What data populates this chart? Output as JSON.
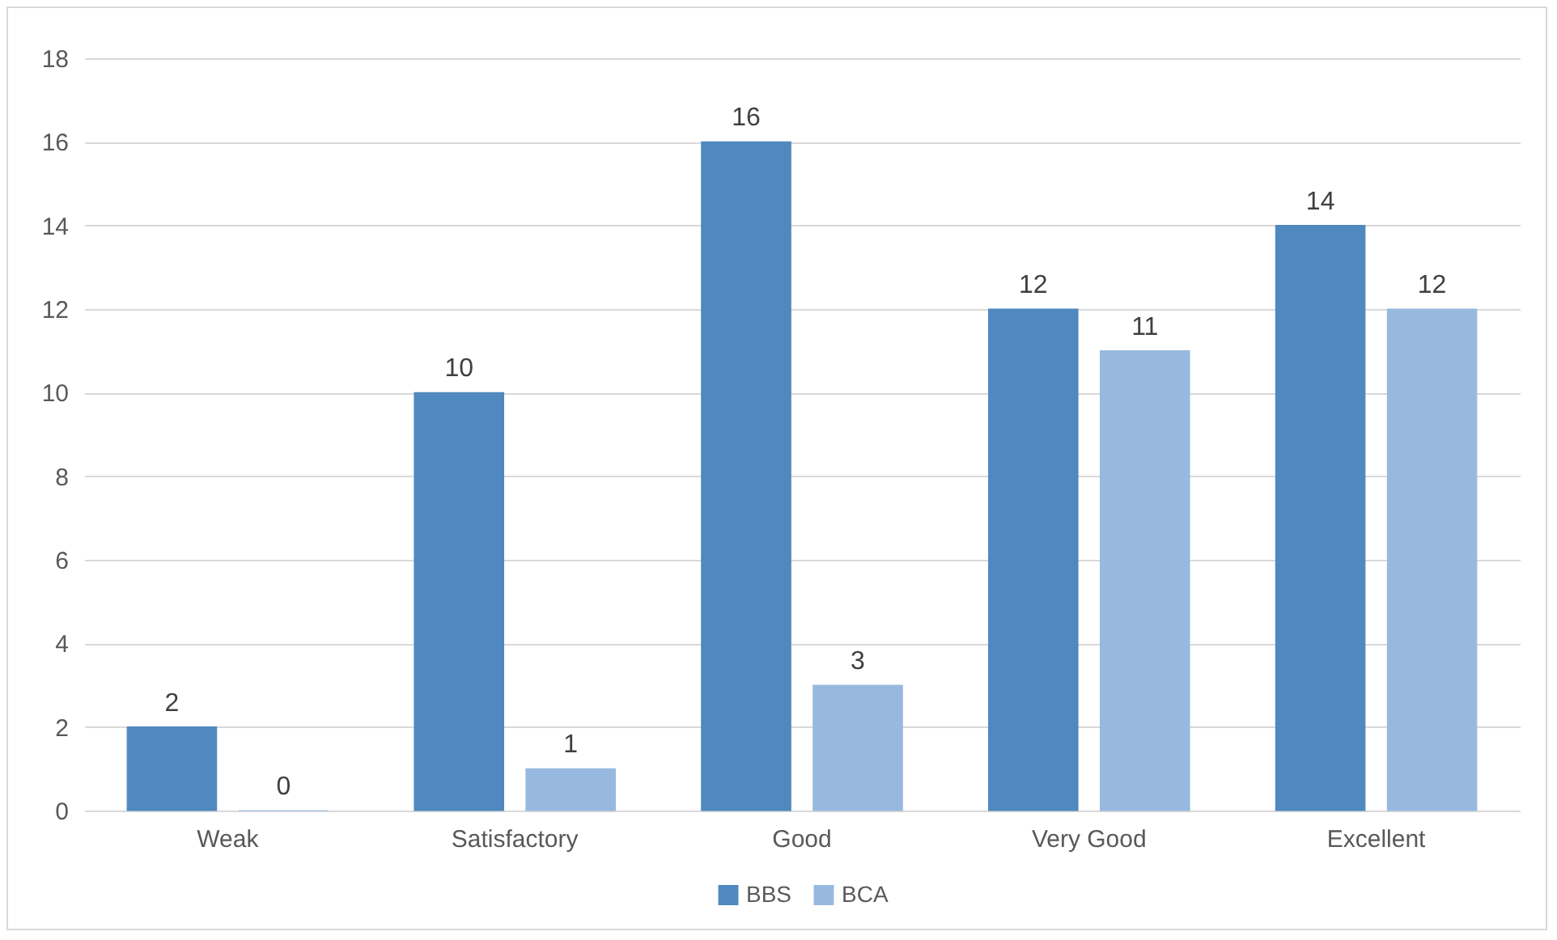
{
  "chart_data": {
    "type": "bar",
    "categories": [
      "Weak",
      "Satisfactory",
      "Good",
      "Very Good",
      "Excellent"
    ],
    "series": [
      {
        "name": "BBS",
        "color": "#4f89bf",
        "values": [
          2,
          10,
          16,
          12,
          14
        ]
      },
      {
        "name": "BCA",
        "color": "#98b9df",
        "values": [
          0,
          1,
          3,
          11,
          12
        ]
      }
    ],
    "ylim": [
      0,
      18
    ],
    "yticks": [
      0,
      2,
      4,
      6,
      8,
      10,
      12,
      14,
      16,
      18
    ],
    "grid": "y",
    "legend": "bottom",
    "data_labels": true
  }
}
